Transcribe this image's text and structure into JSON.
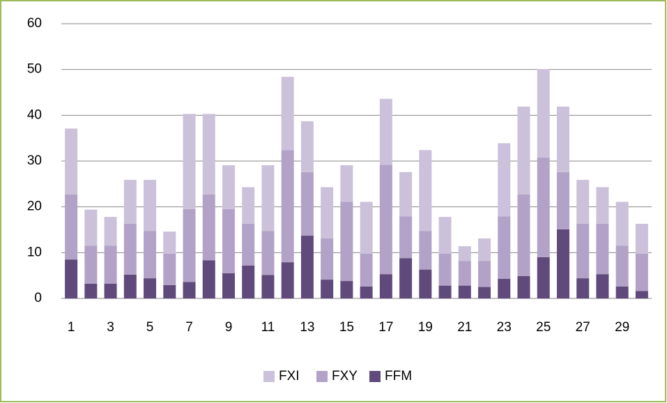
{
  "chart_data": {
    "type": "stacked_bar",
    "categories": [
      1,
      null,
      3,
      null,
      5,
      null,
      7,
      null,
      9,
      null,
      11,
      null,
      13,
      null,
      15,
      null,
      17,
      null,
      19,
      null,
      21,
      null,
      23,
      null,
      25,
      null,
      27,
      null,
      29,
      null
    ],
    "series": [
      {
        "name": "FXI",
        "color": "#ccc1da",
        "values": [
          14.4,
          7.9,
          6.3,
          9.6,
          11.2,
          4.8,
          20.8,
          17.6,
          9.6,
          8.0,
          14.4,
          16.0,
          11.1,
          11.2,
          8.0,
          11.3,
          14.4,
          9.7,
          17.7,
          8.0,
          3.2,
          4.9,
          16.0,
          19.2,
          19.3,
          14.3,
          9.6,
          8.0,
          9.6,
          6.5
        ]
      },
      {
        "name": "FXY",
        "color": "#b3a2c7",
        "values": [
          14.2,
          8.3,
          8.3,
          11.1,
          10.3,
          6.9,
          15.9,
          14.4,
          14.0,
          9.1,
          9.6,
          24.5,
          13.9,
          9.0,
          17.3,
          7.2,
          23.9,
          9.1,
          8.4,
          7.0,
          5.4,
          5.7,
          13.6,
          17.8,
          21.8,
          12.5,
          11.9,
          11.0,
          8.9,
          8.2
        ]
      },
      {
        "name": "FFM",
        "color": "#604a7b",
        "values": [
          8.5,
          3.2,
          3.2,
          5.2,
          4.4,
          2.9,
          3.6,
          8.3,
          5.5,
          7.2,
          5.1,
          7.9,
          13.7,
          4.1,
          3.8,
          2.6,
          5.3,
          8.8,
          6.3,
          2.8,
          2.8,
          2.5,
          4.3,
          4.9,
          9.0,
          15.1,
          4.4,
          5.3,
          2.6,
          1.6
        ]
      }
    ],
    "ylim": [
      0,
      60
    ],
    "yticks": [
      0,
      10,
      20,
      30,
      40,
      50,
      60
    ],
    "grid": true,
    "legend": "bottom"
  }
}
